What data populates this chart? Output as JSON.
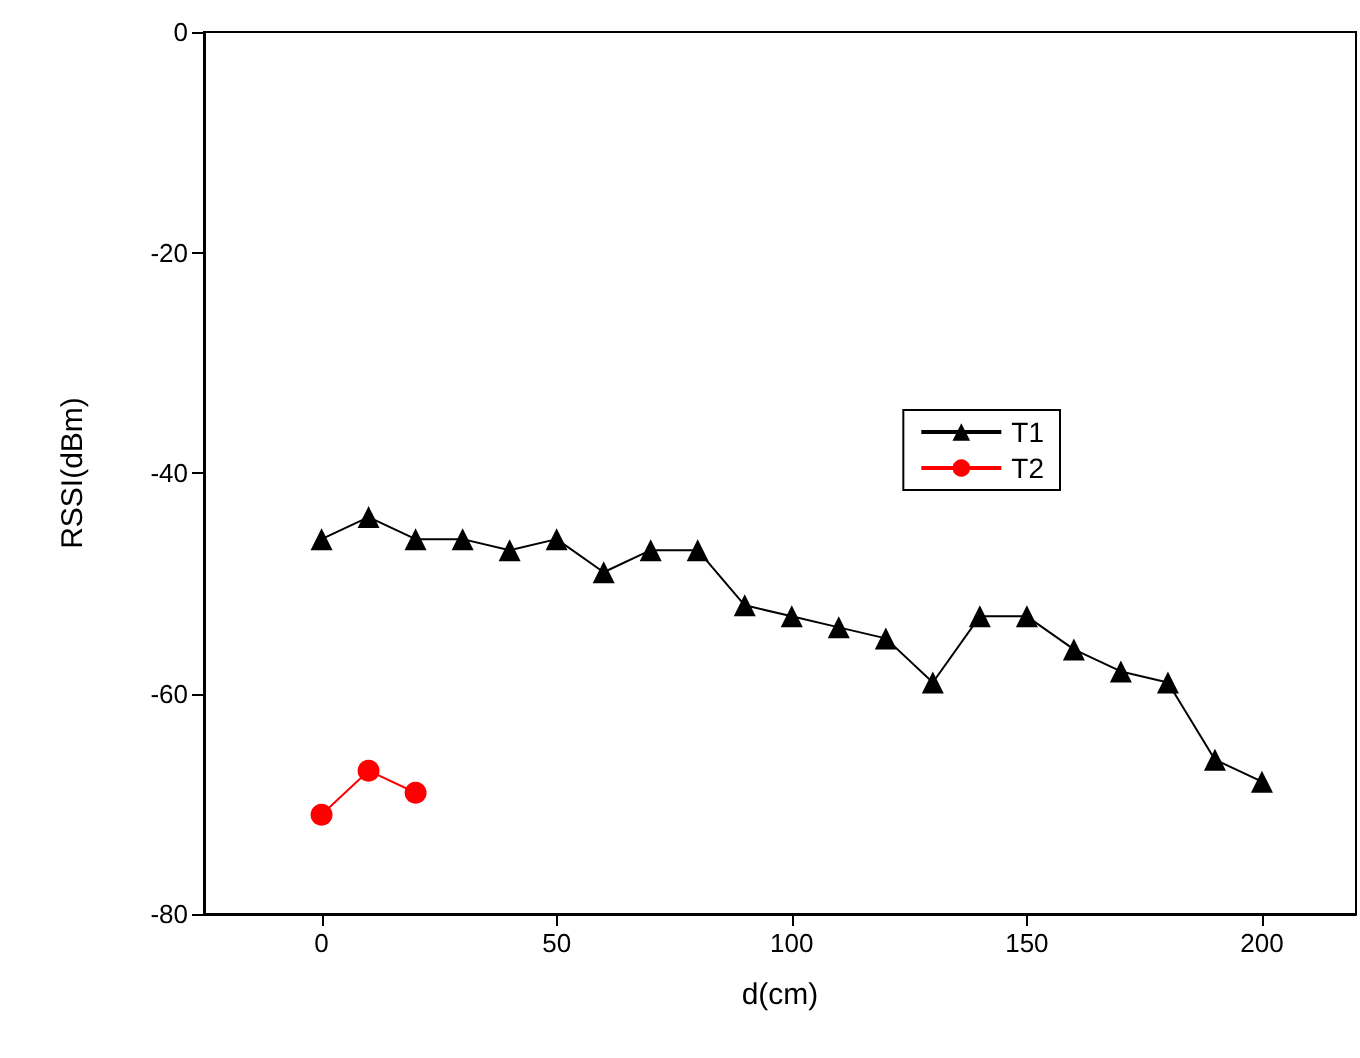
{
  "chart_data": {
    "type": "line",
    "xlabel": "d(cm)",
    "ylabel": "RSSI(dBm)",
    "xlim": [
      -25,
      220
    ],
    "xticks": [
      0,
      50,
      100,
      150,
      200
    ],
    "ylim": [
      -80,
      0
    ],
    "yticks": [
      -80,
      -60,
      -40,
      -20,
      0
    ],
    "legend": "right",
    "grid": false,
    "series": [
      {
        "name": "T1",
        "color": "#000000",
        "marker": "triangle",
        "x": [
          0,
          10,
          20,
          30,
          40,
          50,
          60,
          70,
          80,
          90,
          100,
          110,
          120,
          130,
          140,
          150,
          160,
          170,
          180,
          190,
          200
        ],
        "values": [
          -46,
          -44,
          -46,
          -46,
          -47,
          -46,
          -49,
          -47,
          -47,
          -52,
          -53,
          -54,
          -55,
          -59,
          -53,
          -53,
          -56,
          -58,
          -59,
          -66,
          -68
        ]
      },
      {
        "name": "T2",
        "color": "#ff0000",
        "marker": "circle",
        "x": [
          0,
          10,
          20
        ],
        "values": [
          -71,
          -67,
          -69
        ]
      }
    ]
  }
}
